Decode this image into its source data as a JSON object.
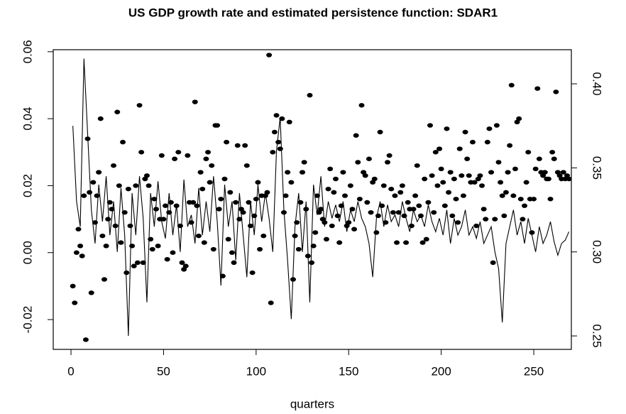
{
  "chart_data": {
    "type": "scatter",
    "title": "US GDP growth rate and estimated persistence function: SDAR1",
    "x_label": "quarters",
    "xlim": [
      -9.6,
      270.3
    ],
    "xticks": [
      0,
      50,
      100,
      150,
      200,
      250
    ],
    "ylim": [
      -0.0289,
      0.0606
    ],
    "yticks": [
      -0.02,
      {
        "value": 0,
        "label": "0.00"
      },
      0.02,
      0.04,
      0.06
    ],
    "y2lim": [
      0.242,
      0.4203
    ],
    "y2ticks": [
      0.25,
      {
        "value": 0.3,
        "label": "0.30"
      },
      0.35,
      {
        "value": 0.4,
        "label": "0.40"
      }
    ],
    "series": [
      {
        "type": "scatter",
        "axis": "y",
        "color": "#000000",
        "x": [
          1,
          2,
          3,
          4,
          5,
          6,
          7,
          8,
          9,
          10,
          11,
          12,
          13,
          14,
          15,
          16,
          17,
          18,
          19,
          20,
          21,
          22,
          23,
          24,
          25,
          26,
          27,
          28,
          29,
          30,
          31,
          32,
          33,
          34,
          35,
          36,
          37,
          38,
          39,
          40,
          41,
          42,
          43,
          44,
          45,
          46,
          47,
          48,
          49,
          50,
          51,
          52,
          53,
          54,
          55,
          56,
          57,
          58,
          59,
          60,
          61,
          62,
          63,
          64,
          65,
          66,
          67,
          68,
          69,
          70,
          71,
          72,
          73,
          74,
          75,
          76,
          77,
          78,
          79,
          80,
          81,
          82,
          83,
          84,
          85,
          86,
          87,
          88,
          89,
          90,
          91,
          92,
          93,
          94,
          95,
          96,
          97,
          98,
          99,
          100,
          101,
          102,
          103,
          104,
          105,
          106,
          107,
          108,
          109,
          110,
          111,
          112,
          113,
          114,
          115,
          116,
          117,
          118,
          119,
          120,
          121,
          122,
          123,
          124,
          125,
          126,
          127,
          128,
          129,
          130,
          131,
          132,
          133,
          134,
          135,
          136,
          137,
          138,
          139,
          140,
          141,
          142,
          143,
          144,
          145,
          146,
          147,
          148,
          149,
          150,
          151,
          152,
          153,
          154,
          155,
          156,
          157,
          158,
          159,
          160,
          161,
          162,
          163,
          164,
          165,
          166,
          167,
          168,
          169,
          170,
          171,
          172,
          173,
          174,
          175,
          176,
          177,
          178,
          179,
          180,
          181,
          182,
          183,
          184,
          185,
          186,
          187,
          188,
          189,
          190,
          191,
          192,
          193,
          194,
          195,
          196,
          197,
          198,
          199,
          200,
          201,
          202,
          203,
          204,
          205,
          206,
          207,
          208,
          209,
          210,
          211,
          212,
          213,
          214,
          215,
          216,
          217,
          218,
          219,
          220,
          221,
          222,
          223,
          224,
          225,
          226,
          227,
          228,
          229,
          230,
          231,
          232,
          233,
          234,
          235,
          236,
          237,
          238,
          239,
          240,
          241,
          242,
          243,
          244,
          245,
          246,
          247,
          248,
          249,
          250,
          251,
          252,
          253,
          254,
          255,
          256,
          257,
          258,
          259,
          260,
          261,
          262,
          263,
          264,
          265,
          266,
          267,
          268,
          269
        ],
        "values": [
          -0.01,
          -0.015,
          0.0,
          0.007,
          0.002,
          -0.001,
          0.017,
          -0.026,
          0.034,
          0.018,
          -0.012,
          0.021,
          0.009,
          0.017,
          0.024,
          0.04,
          0.005,
          -0.008,
          0.002,
          0.01,
          0.015,
          0.013,
          0.026,
          0.008,
          0.042,
          0.02,
          0.003,
          0.033,
          0.012,
          -0.006,
          0.019,
          0.008,
          0.002,
          -0.004,
          0.02,
          -0.003,
          0.044,
          0.03,
          -0.003,
          0.022,
          0.023,
          0.02,
          0.004,
          0.001,
          0.016,
          0.013,
          0.002,
          0.01,
          0.029,
          0.01,
          0.014,
          -0.002,
          0.012,
          0.015,
          0.0,
          0.028,
          0.014,
          0.03,
          0.008,
          -0.003,
          -0.005,
          -0.004,
          0.029,
          0.015,
          0.009,
          0.015,
          0.045,
          0.014,
          0.005,
          0.024,
          0.019,
          0.003,
          0.028,
          0.03,
          0.021,
          0.026,
          0.001,
          0.038,
          0.038,
          0.013,
          0.016,
          -0.007,
          0.022,
          0.033,
          0.004,
          0.018,
          0.0,
          -0.003,
          0.015,
          0.032,
          0.01,
          0.013,
          0.012,
          0.032,
          0.026,
          0.015,
          0.008,
          -0.006,
          0.011,
          0.016,
          0.021,
          0.001,
          0.017,
          0.005,
          0.017,
          0.018,
          0.059,
          -0.015,
          0.03,
          0.036,
          0.041,
          0.033,
          0.031,
          0.04,
          0.012,
          0.017,
          0.024,
          0.039,
          0.021,
          -0.008,
          0.005,
          0.009,
          0.001,
          0.015,
          0.024,
          0.027,
          0.013,
          -0.001,
          0.047,
          -0.003,
          0.002,
          0.006,
          0.017,
          0.012,
          0.013,
          0.01,
          0.009,
          0.004,
          0.019,
          0.025,
          0.008,
          0.018,
          0.022,
          0.011,
          0.003,
          0.014,
          0.024,
          0.017,
          0.008,
          0.009,
          0.02,
          0.013,
          0.007,
          0.035,
          0.027,
          0.016,
          0.044,
          0.024,
          0.023,
          0.015,
          0.028,
          0.012,
          0.021,
          0.022,
          0.006,
          0.011,
          0.036,
          0.014,
          0.02,
          0.009,
          0.027,
          0.029,
          0.019,
          0.012,
          0.017,
          0.003,
          0.012,
          0.018,
          0.02,
          0.011,
          0.003,
          0.015,
          0.013,
          0.008,
          0.013,
          0.017,
          0.026,
          0.014,
          0.011,
          0.003,
          0.022,
          0.004,
          0.015,
          0.038,
          0.023,
          0.012,
          0.03,
          0.02,
          0.031,
          0.025,
          0.021,
          0.014,
          0.037,
          0.018,
          0.024,
          0.011,
          0.022,
          0.016,
          0.009,
          0.031,
          0.023,
          0.017,
          0.036,
          0.028,
          0.023,
          0.021,
          0.033,
          0.021,
          0.008,
          0.022,
          0.023,
          0.02,
          0.013,
          0.01,
          0.033,
          0.037,
          0.024,
          -0.003,
          0.01,
          0.038,
          0.027,
          0.021,
          0.017,
          0.011,
          0.018,
          0.024,
          0.032,
          0.05,
          0.017,
          0.025,
          0.039,
          0.04,
          0.016,
          0.01,
          0.014,
          0.021,
          0.03,
          0.016,
          0.006,
          0.016,
          0.025,
          0.049,
          0.028,
          0.024,
          0.023,
          0.024,
          0.022,
          0.022,
          0.016,
          0.03,
          0.028,
          0.048,
          0.024,
          0.023,
          0.022,
          0.024,
          0.022,
          0.023,
          0.022
        ]
      },
      {
        "type": "line",
        "axis": "y2",
        "color": "#000000",
        "x": [
          1,
          3,
          5,
          7,
          9,
          11,
          13,
          15,
          17,
          19,
          21,
          23,
          25,
          27,
          29,
          31,
          33,
          35,
          37,
          39,
          41,
          43,
          45,
          47,
          49,
          51,
          53,
          55,
          57,
          59,
          61,
          63,
          65,
          67,
          69,
          71,
          73,
          75,
          77,
          79,
          81,
          83,
          85,
          87,
          89,
          91,
          93,
          95,
          97,
          99,
          101,
          103,
          105,
          107,
          109,
          111,
          113,
          115,
          117,
          119,
          121,
          123,
          125,
          127,
          129,
          131,
          133,
          135,
          137,
          139,
          141,
          143,
          145,
          147,
          149,
          151,
          153,
          155,
          157,
          159,
          161,
          163,
          165,
          167,
          169,
          171,
          173,
          175,
          177,
          179,
          181,
          183,
          185,
          187,
          189,
          191,
          193,
          195,
          197,
          199,
          201,
          203,
          205,
          207,
          209,
          211,
          213,
          215,
          217,
          219,
          221,
          223,
          225,
          227,
          229,
          231,
          233,
          235,
          237,
          239,
          241,
          243,
          245,
          247,
          249,
          251,
          253,
          255,
          257,
          259,
          261,
          263,
          265,
          267,
          269
        ],
        "values": [
          0.375,
          0.33,
          0.315,
          0.415,
          0.37,
          0.325,
          0.305,
          0.34,
          0.318,
          0.345,
          0.31,
          0.33,
          0.3,
          0.338,
          0.31,
          0.25,
          0.335,
          0.31,
          0.345,
          0.32,
          0.27,
          0.335,
          0.315,
          0.342,
          0.318,
          0.308,
          0.335,
          0.31,
          0.328,
          0.3,
          0.343,
          0.315,
          0.322,
          0.305,
          0.338,
          0.31,
          0.33,
          0.312,
          0.345,
          0.318,
          0.28,
          0.34,
          0.315,
          0.33,
          0.295,
          0.335,
          0.31,
          0.285,
          0.33,
          0.31,
          0.34,
          0.318,
          0.335,
          0.32,
          0.3,
          0.36,
          0.38,
          0.325,
          0.295,
          0.26,
          0.315,
          0.335,
          0.3,
          0.33,
          0.27,
          0.34,
          0.322,
          0.345,
          0.315,
          0.33,
          0.32,
          0.328,
          0.318,
          0.33,
          0.312,
          0.325,
          0.318,
          0.33,
          0.32,
          0.315,
          0.305,
          0.285,
          0.32,
          0.33,
          0.315,
          0.328,
          0.318,
          0.322,
          0.315,
          0.33,
          0.32,
          0.312,
          0.325,
          0.318,
          0.322,
          0.315,
          0.328,
          0.318,
          0.312,
          0.32,
          0.31,
          0.325,
          0.305,
          0.32,
          0.31,
          0.315,
          0.325,
          0.31,
          0.315,
          0.308,
          0.318,
          0.305,
          0.31,
          0.315,
          0.3,
          0.29,
          0.258,
          0.305,
          0.315,
          0.325,
          0.31,
          0.318,
          0.305,
          0.32,
          0.31,
          0.3,
          0.315,
          0.305,
          0.31,
          0.318,
          0.306,
          0.298,
          0.305,
          0.307,
          0.312
        ]
      }
    ]
  }
}
